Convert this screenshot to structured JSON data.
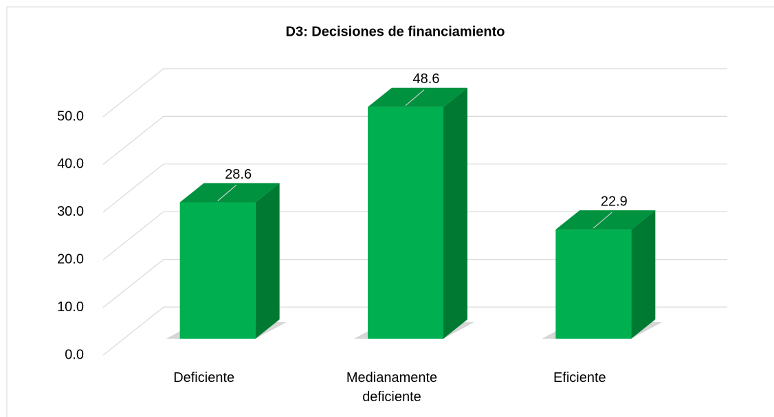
{
  "chart_data": {
    "type": "bar3d",
    "title": "D3: Decisiones de financiamiento",
    "categories": [
      "Deficiente",
      "Medianamente deficiente",
      "Eficiente"
    ],
    "values": [
      28.6,
      48.6,
      22.9
    ],
    "color": "#00b050",
    "ylim": [
      0,
      50
    ],
    "yticks": [
      {
        "value": 0,
        "label": "0.0"
      },
      {
        "value": 10,
        "label": "10.0"
      },
      {
        "value": 20,
        "label": "20.0"
      },
      {
        "value": 30,
        "label": "30.0"
      },
      {
        "value": 40,
        "label": "40.0"
      },
      {
        "value": 50,
        "label": "50.0"
      }
    ],
    "grid": true
  }
}
